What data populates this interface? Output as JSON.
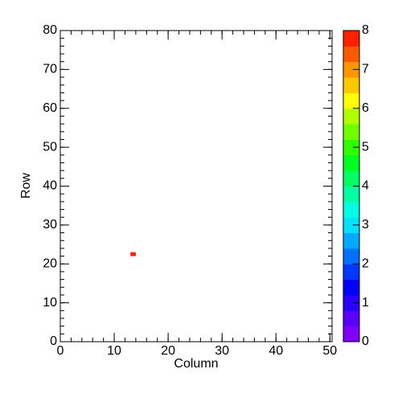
{
  "chart_data": {
    "type": "heatmap",
    "x_label": "Column",
    "y_label": "Row",
    "x": [
      13
    ],
    "y": [
      22
    ],
    "values": [
      8
    ],
    "xlim": [
      0,
      50.4
    ],
    "ylim": [
      0,
      80
    ],
    "xticks": [
      0,
      10,
      20,
      30,
      40,
      50
    ],
    "yticks": [
      0,
      10,
      20,
      30,
      40,
      50,
      60,
      70,
      80
    ],
    "zlim": [
      0,
      8
    ],
    "zticks": [
      0,
      1,
      2,
      3,
      4,
      5,
      6,
      7,
      8
    ],
    "palette": [
      "#8000ff",
      "#5a00ff",
      "#2a00ff",
      "#0000ff",
      "#0038ff",
      "#0070ff",
      "#00a8ff",
      "#00e0ff",
      "#00ffe0",
      "#00ffa0",
      "#00ff60",
      "#00ff20",
      "#30ff00",
      "#70ff00",
      "#b0ff00",
      "#ffff00",
      "#ffc800",
      "#ff9600",
      "#ff5a00",
      "#ff2000"
    ]
  }
}
